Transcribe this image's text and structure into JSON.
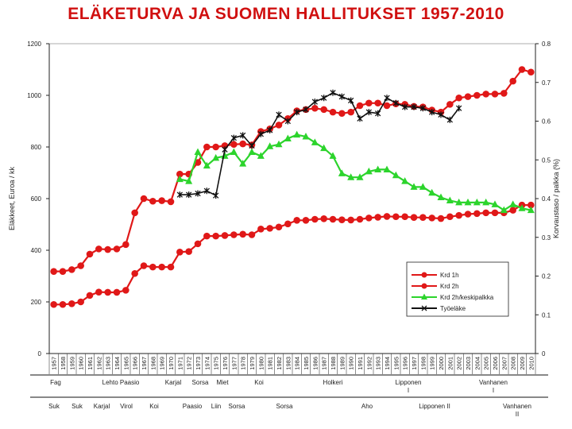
{
  "chart_data": {
    "type": "line",
    "title": "ELÄKETURVA JA SUOMEN HALLITUKSET 1957-2010",
    "ylabel_left": "Eläkkeet, Euroa / kk",
    "ylabel_right": "Korvaustaso / palkka (%)",
    "ylim_left": [
      0,
      1200
    ],
    "ylim_right": [
      0,
      0.8
    ],
    "yticks_left": [
      "0",
      "200",
      "400",
      "600",
      "800",
      "1000",
      "1200"
    ],
    "yticks_right": [
      "0",
      "0.1",
      "0.2",
      "0.3",
      "0.4",
      "0.5",
      "0.6",
      "0.7",
      "0.8"
    ],
    "grid": false,
    "legend_position": "lower-right",
    "x": [
      "1957",
      "1958",
      "1959",
      "1960",
      "1961",
      "1962",
      "1963",
      "1964",
      "1965",
      "1966",
      "1967",
      "1968",
      "1969",
      "1970",
      "1971",
      "1972",
      "1973",
      "1974",
      "1975",
      "1976",
      "1977",
      "1978",
      "1979",
      "1980",
      "1981",
      "1982",
      "1983",
      "1984",
      "1985",
      "1986",
      "1987",
      "1988",
      "1989",
      "1990",
      "1991",
      "1992",
      "1993",
      "1994",
      "1995",
      "1996",
      "1997",
      "1998",
      "1999",
      "2000",
      "2001",
      "2002",
      "2003",
      "2004",
      "2005",
      "2006",
      "2007",
      "2008",
      "2009",
      "2010"
    ],
    "series": [
      {
        "name": "Krd 1h",
        "axis": "left",
        "color": "#e01818",
        "marker": "dot",
        "values": [
          190,
          190,
          193,
          200,
          225,
          238,
          237,
          237,
          245,
          310,
          340,
          335,
          335,
          335,
          393,
          395,
          425,
          455,
          455,
          457,
          460,
          462,
          460,
          482,
          485,
          490,
          502,
          516,
          516,
          520,
          522,
          520,
          518,
          517,
          520,
          525,
          528,
          531,
          530,
          530,
          527,
          527,
          525,
          523,
          530,
          535,
          540,
          542,
          545,
          545,
          545,
          555,
          575,
          575
        ]
      },
      {
        "name": "Krd 2h",
        "axis": "left",
        "color": "#e01818",
        "marker": "dot",
        "values": [
          318,
          318,
          325,
          340,
          385,
          405,
          403,
          405,
          422,
          545,
          600,
          590,
          592,
          588,
          695,
          695,
          740,
          800,
          800,
          805,
          810,
          812,
          808,
          860,
          870,
          885,
          910,
          940,
          945,
          950,
          945,
          935,
          930,
          935,
          960,
          970,
          970,
          960,
          967,
          965,
          957,
          955,
          943,
          935,
          965,
          990,
          995,
          1000,
          1005,
          1005,
          1008,
          1055,
          1100,
          1090
        ]
      },
      {
        "name": "Krd 2h/keskipalkka",
        "axis": "right",
        "color": "#2cd42c",
        "marker": "triangle",
        "values": [
          null,
          null,
          null,
          null,
          null,
          null,
          null,
          null,
          null,
          null,
          null,
          null,
          null,
          null,
          0.45,
          0.445,
          0.52,
          0.485,
          0.505,
          0.51,
          0.52,
          0.49,
          0.52,
          0.51,
          0.535,
          0.54,
          0.555,
          0.565,
          0.56,
          0.545,
          0.53,
          0.51,
          0.465,
          0.455,
          0.455,
          0.47,
          0.475,
          0.475,
          0.46,
          0.445,
          0.43,
          0.43,
          0.415,
          0.403,
          0.395,
          0.39,
          0.39,
          0.39,
          0.39,
          0.385,
          0.37,
          0.385,
          0.375,
          0.37
        ]
      },
      {
        "name": "Työeläke",
        "axis": "left",
        "color": "#111111",
        "marker": "x",
        "values": [
          null,
          null,
          null,
          null,
          null,
          null,
          null,
          null,
          null,
          null,
          null,
          null,
          null,
          null,
          615,
          615,
          620,
          630,
          612,
          790,
          835,
          845,
          805,
          850,
          865,
          925,
          900,
          935,
          945,
          975,
          990,
          1010,
          995,
          980,
          910,
          935,
          930,
          990,
          970,
          955,
          955,
          950,
          935,
          925,
          905,
          950,
          null,
          null,
          null,
          null,
          null,
          null,
          null,
          null
        ]
      }
    ],
    "governments_row1": [
      "Fag",
      "Lehto Paasio",
      "Karjal",
      "Sorsa",
      "Miet",
      "Koi",
      "Holkeri",
      "Lipponen I",
      "Vanhanen I"
    ],
    "governments_row2": [
      "Suk",
      "Suk",
      "Karjal",
      "Virol",
      "Koi",
      "Paasio",
      "Liin",
      "Sorsa",
      "Sorsa",
      "Aho",
      "Lipponen II",
      "Vanhanen II"
    ]
  }
}
